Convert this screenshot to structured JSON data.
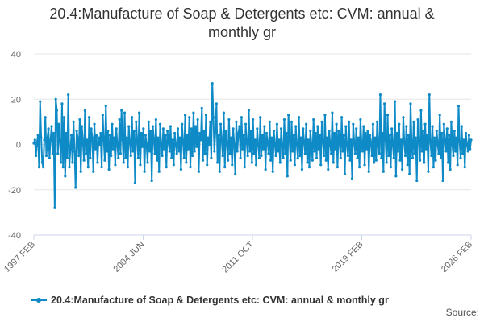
{
  "chart_data": {
    "type": "line",
    "title_line1": "20.4:Manufacture of Soap & Detergents etc: CVM: annual &",
    "title_line2": "monthly gr",
    "xlabel": "",
    "ylabel": "",
    "ylim": [
      -40,
      40
    ],
    "yticks": [
      "40",
      "20",
      "0",
      "-20",
      "-40"
    ],
    "xticks": [
      "1997 FEB",
      "2004 JUN",
      "2011 OCT",
      "2019 FEB",
      "2026 FEB"
    ],
    "grid": "horizontal",
    "legend_position": "bottom",
    "series": [
      {
        "name": "20.4:Manufacture of Soap & Detergents etc: CVM: annual & monthly gr",
        "color": "#0e8ac7",
        "start": "1997 FEB",
        "end": "2026 FEB",
        "values": [
          0.5,
          2,
          -5,
          1,
          4,
          -10,
          19,
          3,
          -8,
          -10,
          2,
          12,
          -5,
          3,
          7,
          -6,
          2,
          8,
          -4,
          5,
          -28,
          20,
          15,
          -4,
          9,
          1,
          -8,
          18,
          -10,
          12,
          -14,
          5,
          -6,
          22,
          -10,
          -2,
          4,
          -8,
          10,
          -3,
          -19,
          6,
          3,
          -5,
          11,
          -12,
          8,
          1,
          -7,
          15,
          -4,
          2,
          -10,
          12,
          -6,
          7,
          3,
          -12,
          9,
          -2,
          4,
          -8,
          3,
          0,
          5,
          -10,
          13,
          2,
          -7,
          17,
          -3,
          6,
          -11,
          4,
          -5,
          9,
          -2,
          3,
          -9,
          7,
          0,
          -6,
          11,
          -4,
          15,
          2,
          -8,
          14,
          -6,
          3,
          -10,
          8,
          1,
          -5,
          12,
          -3,
          6,
          -17,
          10,
          2,
          -6,
          14,
          -9,
          5,
          -1,
          7,
          -12,
          4,
          0,
          -8,
          10,
          -3,
          6,
          -16,
          8,
          2,
          -4,
          11,
          -7,
          3,
          -12,
          9,
          0,
          -5,
          7,
          -2,
          4,
          -10,
          6,
          1,
          -3,
          8,
          -6,
          2,
          -9,
          5,
          0,
          -4,
          7,
          -3,
          3,
          -11,
          9,
          1,
          -6,
          13,
          -8,
          4,
          -2,
          12,
          -10,
          7,
          -5,
          14,
          -3,
          8,
          -1,
          11,
          -12,
          5,
          2,
          16,
          -7,
          6,
          -4,
          13,
          -9,
          3,
          0,
          10,
          -6,
          27,
          12,
          -3,
          6,
          18,
          -8,
          4,
          -12,
          9,
          2,
          -5,
          14,
          -10,
          6,
          1,
          -7,
          11,
          -4,
          3,
          -9,
          7,
          0,
          -13,
          10,
          -3,
          5,
          8,
          -6,
          12,
          -2,
          4,
          -10,
          9,
          1,
          -5,
          15,
          -3,
          6,
          -8,
          11,
          -4,
          2,
          -9,
          7,
          0,
          -6,
          12,
          -5,
          4,
          -2,
          8,
          -11,
          5,
          1,
          -4,
          10,
          -7,
          3,
          -12,
          6,
          0,
          -5,
          9,
          -3,
          2,
          -8,
          7,
          -1,
          -6,
          11,
          -4,
          5,
          -14,
          13,
          2,
          -7,
          10,
          -3,
          4,
          -9,
          8,
          0,
          -6,
          12,
          -5,
          3,
          -11,
          7,
          1,
          -4,
          9,
          -8,
          2,
          -10,
          6,
          0,
          -7,
          11,
          -3,
          5,
          -6,
          8,
          -2,
          4,
          -9,
          10,
          1,
          -5,
          13,
          -7,
          3,
          -11,
          6,
          0,
          -4,
          14,
          -8,
          5,
          -2,
          9,
          -10,
          6,
          1,
          -6,
          12,
          -3,
          4,
          -13,
          8,
          0,
          -5,
          10,
          -7,
          2,
          -15,
          9,
          1,
          -4,
          7,
          -6,
          3,
          -10,
          11,
          0,
          -3,
          8,
          -9,
          5,
          -2,
          6,
          -12,
          4,
          1,
          -5,
          9,
          -8,
          3,
          -7,
          10,
          -1,
          -4,
          22,
          -6,
          5,
          -12,
          18,
          2,
          -8,
          13,
          -5,
          4,
          -10,
          7,
          0,
          -6,
          19,
          -14,
          5,
          -3,
          9,
          -7,
          2,
          -11,
          12,
          1,
          -5,
          8,
          -9,
          4,
          -13,
          18,
          0,
          -6,
          10,
          -4,
          3,
          -16,
          11,
          2,
          -7,
          15,
          -3,
          6,
          -8,
          9,
          -2,
          4,
          -12,
          22,
          1,
          -5,
          8,
          -10,
          3,
          -7,
          6,
          0,
          -4,
          13,
          -6,
          5,
          -16,
          9,
          2,
          -3,
          7,
          -8,
          4,
          -11,
          10,
          0,
          -5,
          6,
          -3,
          3,
          -9,
          17,
          1,
          -6,
          8,
          -4,
          2,
          -10,
          5,
          0,
          -3,
          4,
          -2,
          2
        ]
      }
    ]
  },
  "legend": {
    "label": "20.4:Manufacture of Soap & Detergents etc: CVM: annual & monthly gr"
  },
  "footer": {
    "source": "Source:"
  }
}
